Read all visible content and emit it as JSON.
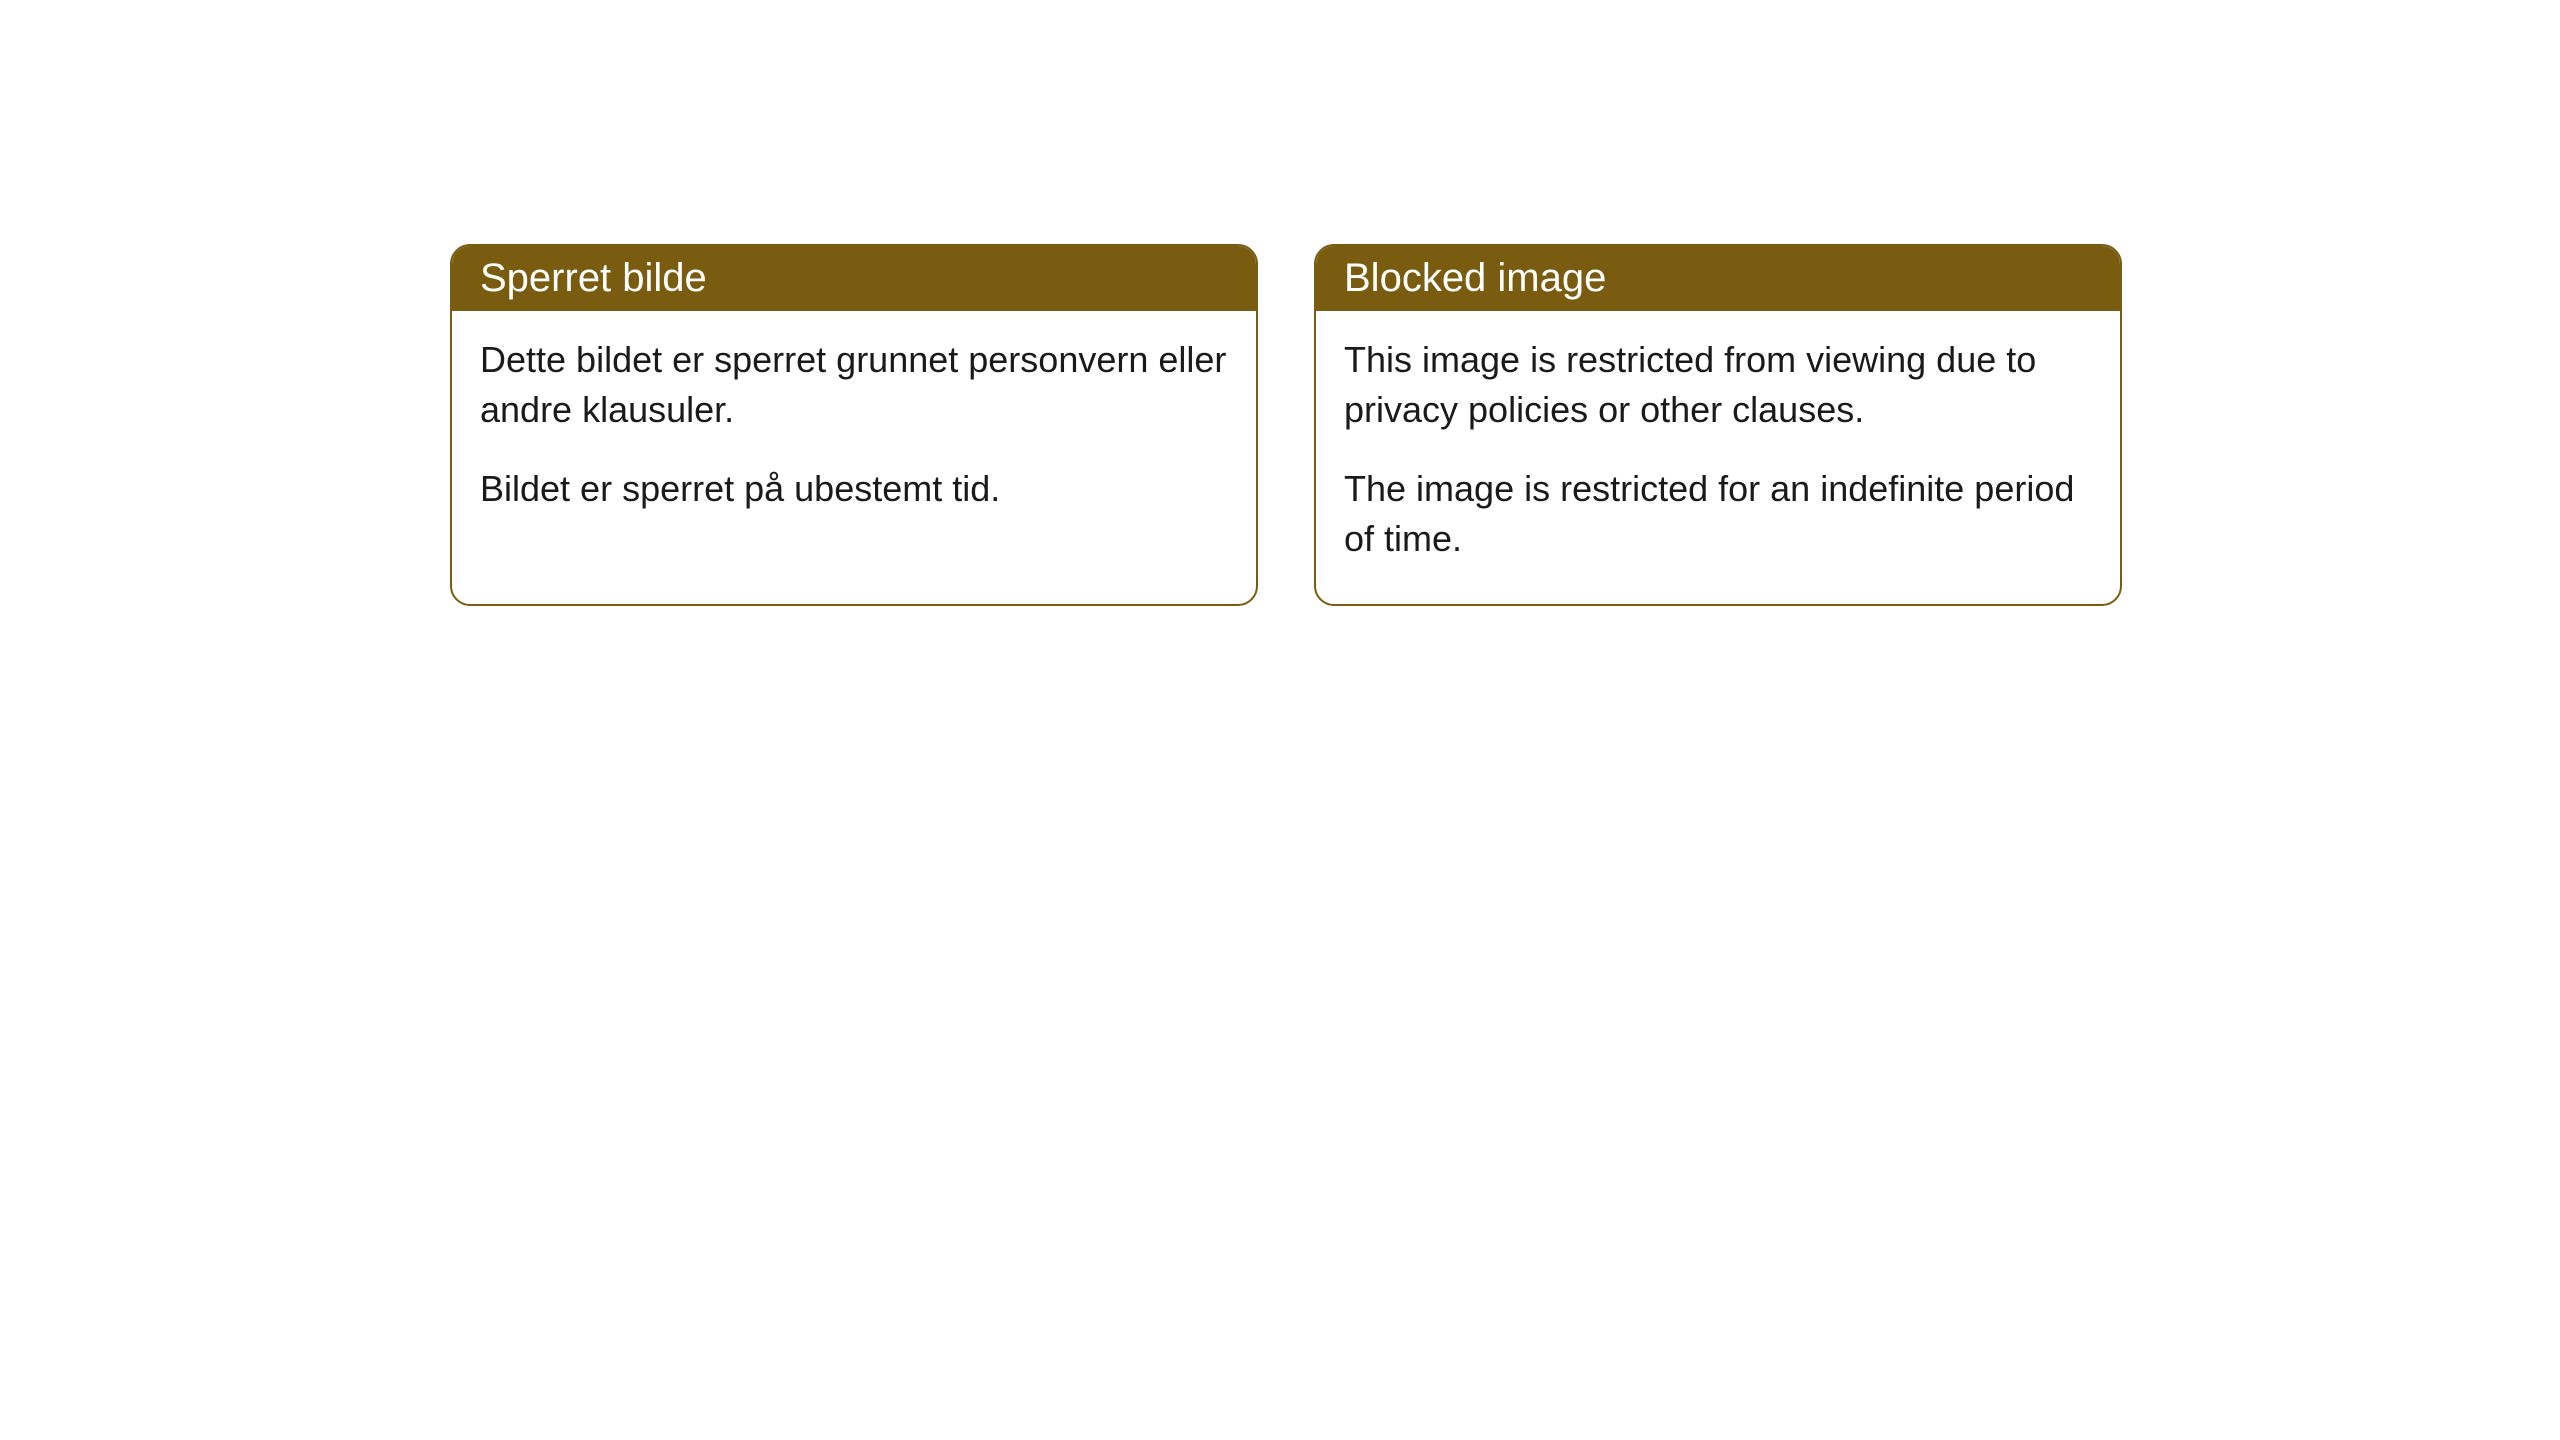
{
  "cards": {
    "norwegian": {
      "title": "Sperret bilde",
      "paragraph1": "Dette bildet er sperret grunnet personvern eller andre klausuler.",
      "paragraph2": "Bildet er sperret på ubestemt tid."
    },
    "english": {
      "title": "Blocked image",
      "paragraph1": "This image is restricted from viewing due to privacy policies or other clauses.",
      "paragraph2": "The image is restricted for an indefinite period of time."
    }
  },
  "styling": {
    "header_bg_color": "#7a5c10",
    "header_text_color": "#ffffff",
    "border_color": "#7a5c10",
    "body_bg_color": "#ffffff",
    "body_text_color": "#1a1a1a",
    "border_radius": 20,
    "title_fontsize": 40,
    "body_fontsize": 36
  }
}
